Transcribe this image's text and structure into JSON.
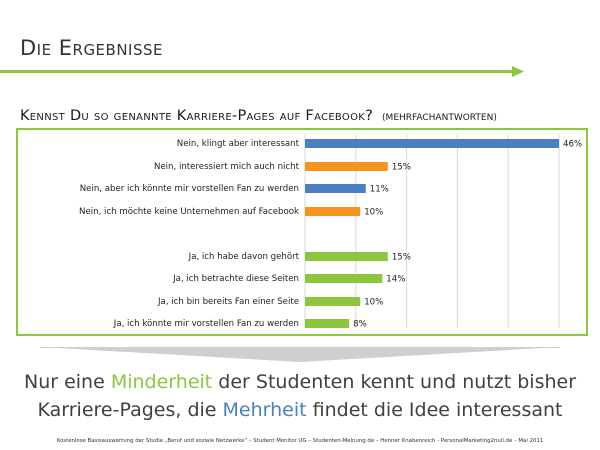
{
  "slide": {
    "title": "Die Ergebnisse",
    "question": "Kennst Du so genannte Karriere-Pages auf Facebook?",
    "question_note": "(Mehrfachantworten)",
    "conclusion": {
      "line1_a": "Nur eine ",
      "line1_hl": "Minderheit",
      "line1_b": " der Studenten kennt und nutzt bisher",
      "line2_a": "Karriere-Pages, die ",
      "line2_hl": "Mehrheit",
      "line2_b": " findet die Idee interessant"
    },
    "footer": "Kostenlose Basisauswertung der Studie „Beruf und soziale Netzwerke“ – Student Monitor UG – Studenten-Meinung.de – Henner Knabenreich - PersonalMarketing2null.de – Mai 2011",
    "colors": {
      "accent_green": "#8cc63f",
      "blue": "#4a7fc1",
      "orange": "#f7941d",
      "grey_arrow": "#c8c8c8"
    }
  },
  "chart_data": {
    "type": "bar",
    "orientation": "horizontal",
    "xlim": [
      0,
      46
    ],
    "grid": true,
    "categories": [
      "Nein, klingt aber interessant",
      "Nein, interessiert mich auch nicht",
      "Nein, aber ich könnte mir vorstellen Fan zu werden",
      "Nein, ich möchte keine Unternehmen auf Facebook",
      "Ja, ich habe davon gehört",
      "Ja, ich betrachte diese Seiten",
      "Ja, ich bin bereits Fan einer Seite",
      "Ja, ich könnte mir vorstellen Fan zu werden"
    ],
    "values": [
      46,
      15,
      11,
      10,
      15,
      14,
      10,
      8
    ],
    "value_labels": [
      "46%",
      "15%",
      "11%",
      "10%",
      "15%",
      "14%",
      "10%",
      "8%"
    ],
    "bar_colors": [
      "#4a7fc1",
      "#f7941d",
      "#4a7fc1",
      "#f7941d",
      "#8cc63f",
      "#8cc63f",
      "#8cc63f",
      "#8cc63f"
    ]
  }
}
